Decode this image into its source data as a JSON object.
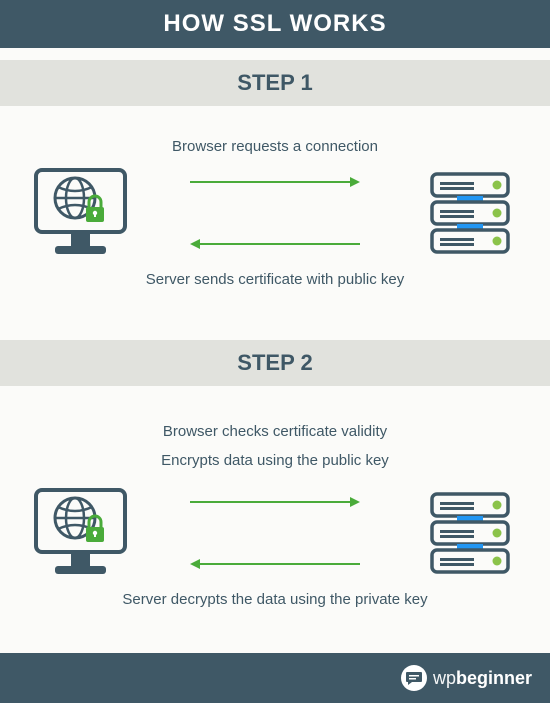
{
  "infographic": {
    "type": "infographic",
    "title": "HOW SSL WORKS",
    "background_color": "#fbfbf9",
    "header": {
      "bg": "#3f5866",
      "text_color": "#ffffff",
      "fontsize": 24
    },
    "step_header": {
      "bg": "#e1e2dd",
      "text_color": "#3f5866",
      "fontsize": 22
    },
    "caption": {
      "color": "#3f5866",
      "fontsize": 15
    },
    "arrow": {
      "color": "#4aab3a",
      "stroke_width": 2,
      "length": 170
    },
    "browser_icon": {
      "stroke": "#3f5866",
      "accent": "#4aab3a",
      "width": 95,
      "height": 92
    },
    "server_icon": {
      "stroke": "#3f5866",
      "led": "#8bc34a",
      "led2": "#2196f3",
      "width": 82,
      "height": 84
    },
    "steps": [
      {
        "label": "STEP 1",
        "top_caption": "Browser requests a connection",
        "bottom_caption": "Server sends certificate with public key"
      },
      {
        "label": "STEP 2",
        "top_caption": "Browser checks certificate validity\nEncrypts data using the public key",
        "bottom_caption": "Server decrypts the data using the private key"
      }
    ],
    "footer": {
      "bg": "#3f5866",
      "brand_wp": "wp",
      "brand_beginner": "beginner"
    }
  }
}
